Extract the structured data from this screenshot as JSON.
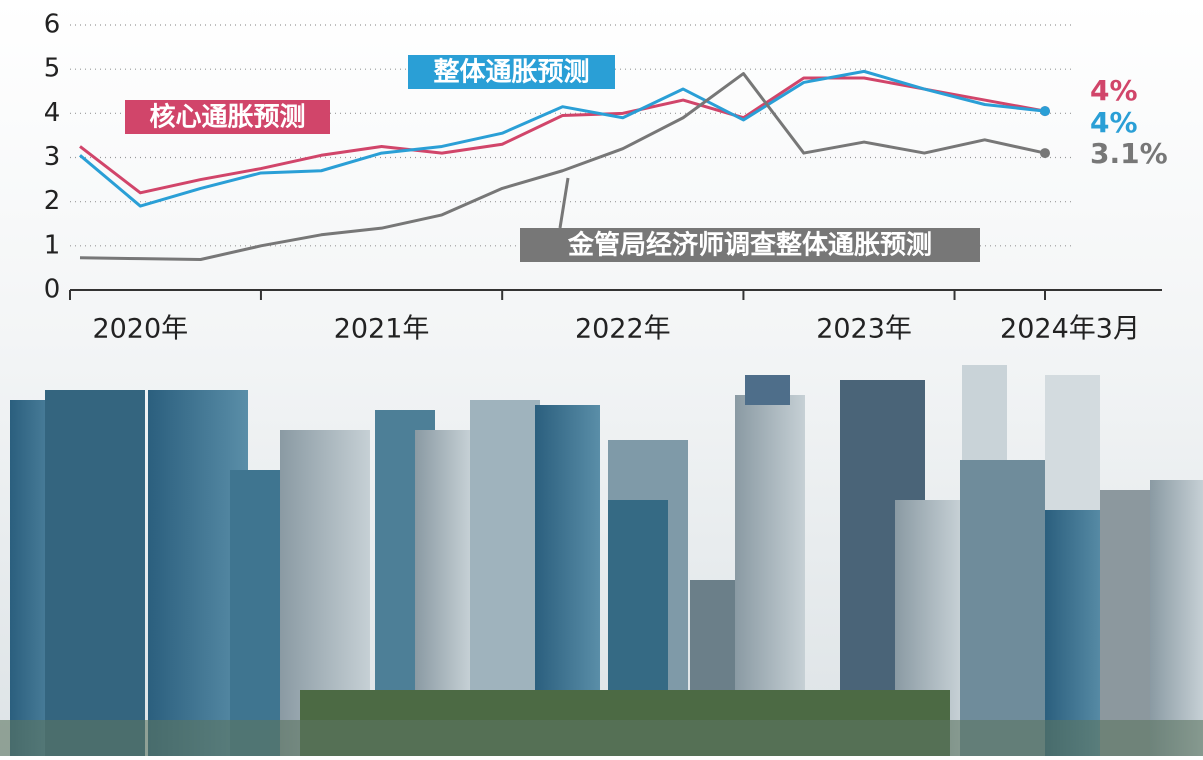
{
  "chart_data": {
    "type": "line",
    "categories": [
      null,
      "2020年",
      null,
      null,
      null,
      "2021年",
      null,
      null,
      null,
      "2022年",
      null,
      null,
      null,
      "2023年",
      null,
      null,
      "2024年3月"
    ],
    "series": [
      {
        "name": "核心通胀预测",
        "color": "#d1456a",
        "values": [
          3.25,
          2.2,
          2.5,
          2.75,
          3.05,
          3.25,
          3.1,
          3.3,
          3.95,
          4.0,
          4.3,
          3.9,
          4.8,
          4.8,
          4.55,
          4.3,
          4.05
        ],
        "value_labels": [
          null,
          null,
          null,
          null,
          null,
          null,
          null,
          null,
          null,
          null,
          null,
          null,
          null,
          null,
          null,
          null,
          "4%"
        ]
      },
      {
        "name": "整体通胀预测",
        "color": "#2a9fd6",
        "values": [
          3.05,
          1.9,
          2.3,
          2.65,
          2.7,
          3.1,
          3.25,
          3.55,
          4.15,
          3.9,
          4.55,
          3.85,
          4.7,
          4.95,
          4.55,
          4.2,
          4.05
        ],
        "value_labels": [
          null,
          null,
          null,
          null,
          null,
          null,
          null,
          null,
          null,
          null,
          null,
          null,
          null,
          null,
          null,
          null,
          "4%"
        ]
      },
      {
        "name": "金管局经济师调查整体通胀预测",
        "color": "#777777",
        "values": [
          0.73,
          0.71,
          0.69,
          1.0,
          1.25,
          1.4,
          1.7,
          2.3,
          2.7,
          3.2,
          3.9,
          4.9,
          3.1,
          3.35,
          3.1,
          3.4,
          3.1
        ],
        "value_labels": [
          null,
          null,
          null,
          null,
          null,
          null,
          null,
          null,
          null,
          null,
          null,
          null,
          null,
          null,
          null,
          null,
          "3.1%"
        ]
      }
    ],
    "ylim": [
      0,
      6
    ],
    "yticks": [
      0,
      1,
      2,
      3,
      4,
      5,
      6
    ],
    "grid": true
  }
}
